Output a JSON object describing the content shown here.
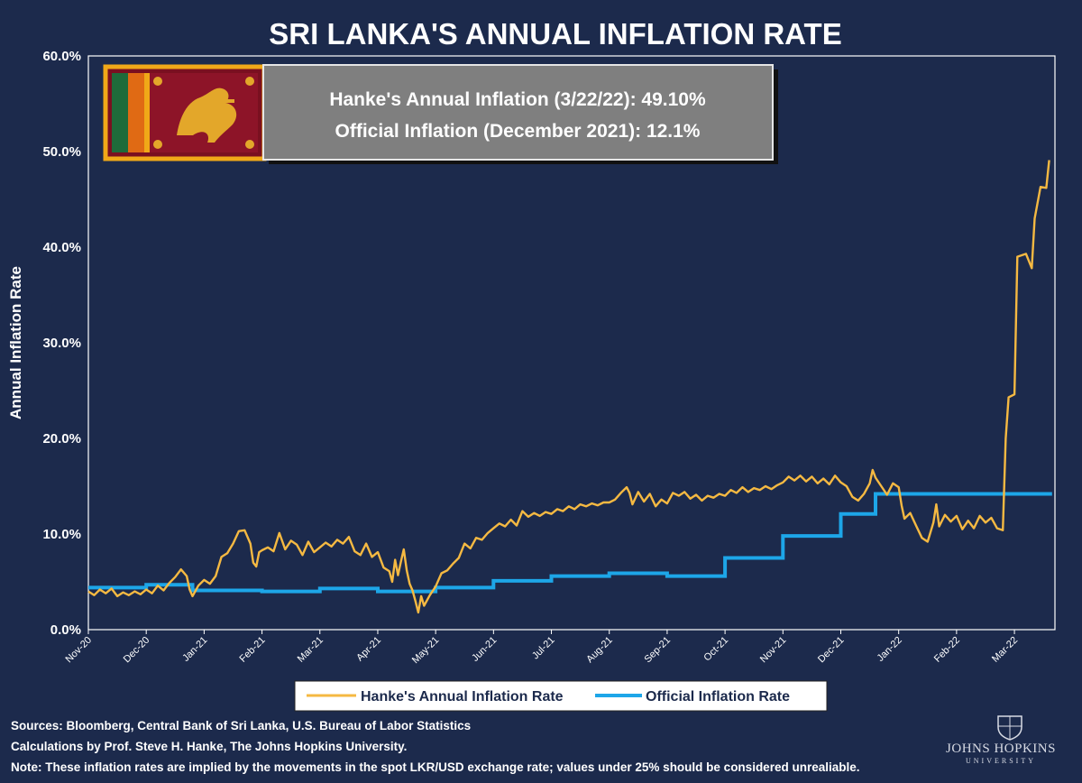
{
  "chart_data": {
    "type": "line",
    "title": "SRI LANKA'S ANNUAL INFLATION RATE",
    "ylabel": "Annual Inflation Rate",
    "xlabel": "",
    "ylim": [
      0,
      60
    ],
    "yticks": [
      "0.0%",
      "10.0%",
      "20.0%",
      "30.0%",
      "40.0%",
      "50.0%",
      "60.0%"
    ],
    "xticks": [
      "Nov-20",
      "Dec-20",
      "Jan-21",
      "Feb-21",
      "Mar-21",
      "Apr-21",
      "May-21",
      "Jun-21",
      "Jul-21",
      "Aug-21",
      "Sep-21",
      "Oct-21",
      "Nov-21",
      "Dec-21",
      "Jan-22",
      "Feb-22",
      "Mar-22"
    ],
    "x_range_months": [
      0,
      16.7
    ],
    "grid": false,
    "legend_position": "bottom",
    "annotation": [
      "Hanke's Annual Inflation (3/22/22): 49.10%",
      "Official Inflation (December 2021): 12.1%"
    ],
    "series": [
      {
        "name": "Hanke's Annual Inflation Rate",
        "color": "#f5b942",
        "points": [
          [
            0.0,
            4.0
          ],
          [
            0.1,
            3.6
          ],
          [
            0.2,
            4.2
          ],
          [
            0.3,
            3.8
          ],
          [
            0.4,
            4.3
          ],
          [
            0.5,
            3.5
          ],
          [
            0.6,
            3.9
          ],
          [
            0.7,
            3.6
          ],
          [
            0.8,
            4.0
          ],
          [
            0.9,
            3.7
          ],
          [
            1.0,
            4.2
          ],
          [
            1.1,
            3.8
          ],
          [
            1.2,
            4.6
          ],
          [
            1.3,
            4.1
          ],
          [
            1.4,
            4.9
          ],
          [
            1.5,
            5.5
          ],
          [
            1.6,
            6.3
          ],
          [
            1.7,
            5.6
          ],
          [
            1.75,
            4.2
          ],
          [
            1.8,
            3.5
          ],
          [
            1.9,
            4.6
          ],
          [
            2.0,
            5.2
          ],
          [
            2.1,
            4.8
          ],
          [
            2.2,
            5.6
          ],
          [
            2.3,
            7.6
          ],
          [
            2.4,
            8.0
          ],
          [
            2.5,
            9.0
          ],
          [
            2.6,
            10.3
          ],
          [
            2.7,
            10.4
          ],
          [
            2.8,
            9.0
          ],
          [
            2.85,
            7.0
          ],
          [
            2.9,
            6.6
          ],
          [
            2.95,
            8.1
          ],
          [
            3.0,
            8.3
          ],
          [
            3.1,
            8.6
          ],
          [
            3.2,
            8.2
          ],
          [
            3.3,
            10.1
          ],
          [
            3.4,
            8.4
          ],
          [
            3.5,
            9.3
          ],
          [
            3.6,
            8.9
          ],
          [
            3.7,
            7.8
          ],
          [
            3.8,
            9.2
          ],
          [
            3.9,
            8.1
          ],
          [
            4.0,
            8.6
          ],
          [
            4.1,
            9.1
          ],
          [
            4.2,
            8.7
          ],
          [
            4.3,
            9.4
          ],
          [
            4.4,
            9.0
          ],
          [
            4.5,
            9.7
          ],
          [
            4.6,
            8.2
          ],
          [
            4.7,
            7.8
          ],
          [
            4.8,
            9.0
          ],
          [
            4.9,
            7.6
          ],
          [
            5.0,
            8.1
          ],
          [
            5.1,
            6.5
          ],
          [
            5.2,
            6.1
          ],
          [
            5.25,
            5.0
          ],
          [
            5.3,
            7.3
          ],
          [
            5.35,
            5.7
          ],
          [
            5.4,
            7.1
          ],
          [
            5.45,
            8.4
          ],
          [
            5.5,
            6.2
          ],
          [
            5.55,
            4.8
          ],
          [
            5.6,
            4.1
          ],
          [
            5.65,
            3.0
          ],
          [
            5.7,
            1.8
          ],
          [
            5.75,
            3.5
          ],
          [
            5.8,
            2.5
          ],
          [
            5.9,
            3.6
          ],
          [
            6.0,
            4.5
          ],
          [
            6.1,
            5.9
          ],
          [
            6.2,
            6.2
          ],
          [
            6.3,
            6.9
          ],
          [
            6.4,
            7.5
          ],
          [
            6.5,
            9.0
          ],
          [
            6.6,
            8.5
          ],
          [
            6.7,
            9.6
          ],
          [
            6.8,
            9.4
          ],
          [
            6.9,
            10.1
          ],
          [
            7.0,
            10.6
          ],
          [
            7.1,
            11.1
          ],
          [
            7.2,
            10.8
          ],
          [
            7.3,
            11.5
          ],
          [
            7.4,
            10.9
          ],
          [
            7.5,
            12.4
          ],
          [
            7.6,
            11.8
          ],
          [
            7.7,
            12.2
          ],
          [
            7.8,
            11.9
          ],
          [
            7.9,
            12.3
          ],
          [
            8.0,
            12.1
          ],
          [
            8.1,
            12.6
          ],
          [
            8.2,
            12.4
          ],
          [
            8.3,
            12.9
          ],
          [
            8.4,
            12.6
          ],
          [
            8.5,
            13.1
          ],
          [
            8.6,
            12.9
          ],
          [
            8.7,
            13.2
          ],
          [
            8.8,
            13.0
          ],
          [
            8.9,
            13.3
          ],
          [
            9.0,
            13.3
          ],
          [
            9.1,
            13.6
          ],
          [
            9.2,
            14.3
          ],
          [
            9.3,
            14.9
          ],
          [
            9.35,
            14.3
          ],
          [
            9.4,
            13.1
          ],
          [
            9.5,
            14.4
          ],
          [
            9.6,
            13.4
          ],
          [
            9.7,
            14.2
          ],
          [
            9.8,
            12.9
          ],
          [
            9.9,
            13.6
          ],
          [
            10.0,
            13.2
          ],
          [
            10.1,
            14.3
          ],
          [
            10.2,
            14.0
          ],
          [
            10.3,
            14.4
          ],
          [
            10.4,
            13.7
          ],
          [
            10.5,
            14.1
          ],
          [
            10.6,
            13.5
          ],
          [
            10.7,
            14.0
          ],
          [
            10.8,
            13.8
          ],
          [
            10.9,
            14.2
          ],
          [
            11.0,
            14.0
          ],
          [
            11.1,
            14.6
          ],
          [
            11.2,
            14.3
          ],
          [
            11.3,
            14.9
          ],
          [
            11.4,
            14.4
          ],
          [
            11.5,
            14.8
          ],
          [
            11.6,
            14.6
          ],
          [
            11.7,
            15.0
          ],
          [
            11.8,
            14.7
          ],
          [
            11.9,
            15.1
          ],
          [
            12.0,
            15.4
          ],
          [
            12.1,
            16.0
          ],
          [
            12.2,
            15.6
          ],
          [
            12.3,
            16.1
          ],
          [
            12.4,
            15.5
          ],
          [
            12.5,
            16.0
          ],
          [
            12.6,
            15.3
          ],
          [
            12.7,
            15.8
          ],
          [
            12.8,
            15.2
          ],
          [
            12.9,
            16.1
          ],
          [
            13.0,
            15.4
          ],
          [
            13.1,
            15.0
          ],
          [
            13.2,
            13.9
          ],
          [
            13.3,
            13.5
          ],
          [
            13.4,
            14.2
          ],
          [
            13.5,
            15.3
          ],
          [
            13.55,
            16.7
          ],
          [
            13.6,
            15.9
          ],
          [
            13.7,
            15.0
          ],
          [
            13.8,
            14.1
          ],
          [
            13.9,
            15.3
          ],
          [
            14.0,
            14.9
          ],
          [
            14.05,
            13.0
          ],
          [
            14.1,
            11.6
          ],
          [
            14.2,
            12.2
          ],
          [
            14.3,
            10.9
          ],
          [
            14.4,
            9.6
          ],
          [
            14.5,
            9.2
          ],
          [
            14.6,
            11.2
          ],
          [
            14.65,
            13.1
          ],
          [
            14.7,
            10.8
          ],
          [
            14.8,
            12.0
          ],
          [
            14.9,
            11.3
          ],
          [
            15.0,
            11.9
          ],
          [
            15.1,
            10.5
          ],
          [
            15.2,
            11.4
          ],
          [
            15.3,
            10.6
          ],
          [
            15.4,
            11.9
          ],
          [
            15.5,
            11.2
          ],
          [
            15.6,
            11.7
          ],
          [
            15.7,
            10.6
          ],
          [
            15.8,
            10.4
          ],
          [
            15.85,
            20.0
          ],
          [
            15.9,
            24.3
          ],
          [
            16.0,
            24.6
          ],
          [
            16.05,
            39.0
          ],
          [
            16.2,
            39.3
          ],
          [
            16.3,
            37.8
          ],
          [
            16.35,
            43.0
          ],
          [
            16.45,
            46.3
          ],
          [
            16.55,
            46.2
          ],
          [
            16.6,
            49.1
          ]
        ]
      },
      {
        "name": "Official Inflation Rate",
        "color": "#1da6e8",
        "steps": [
          [
            0.0,
            4.4
          ],
          [
            1.0,
            4.7
          ],
          [
            1.8,
            4.1
          ],
          [
            3.0,
            4.0
          ],
          [
            4.0,
            4.3
          ],
          [
            5.0,
            4.0
          ],
          [
            6.0,
            4.4
          ],
          [
            7.0,
            5.1
          ],
          [
            8.0,
            5.6
          ],
          [
            9.0,
            5.9
          ],
          [
            10.0,
            5.6
          ],
          [
            11.0,
            7.5
          ],
          [
            12.0,
            9.8
          ],
          [
            13.0,
            12.1
          ],
          [
            13.6,
            14.2
          ]
        ]
      }
    ]
  },
  "footer": {
    "sources": "Sources: Bloomberg, Central Bank of Sri Lanka, U.S. Bureau of Labor Statistics",
    "calculations": "Calculations by Prof. Steve H. Hanke, The Johns Hopkins University.",
    "note": "Note: These inflation rates are implied by the movements in the spot LKR/USD exchange rate; values under 25% should be considered unrealiable."
  },
  "logo": {
    "name": "JOHNS HOPKINS",
    "sub": "UNIVERSITY",
    "icon": "jhu-shield-icon"
  },
  "flag": {
    "icon": "sri-lanka-flag-icon"
  }
}
